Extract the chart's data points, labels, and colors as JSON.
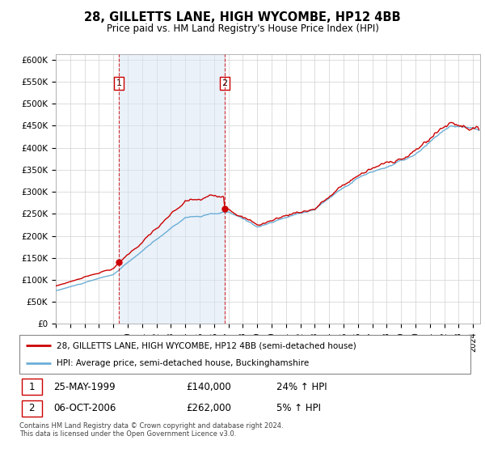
{
  "title": "28, GILLETTS LANE, HIGH WYCOMBE, HP12 4BB",
  "subtitle": "Price paid vs. HM Land Registry's House Price Index (HPI)",
  "ylabel_ticks": [
    "£0",
    "£50K",
    "£100K",
    "£150K",
    "£200K",
    "£250K",
    "£300K",
    "£350K",
    "£400K",
    "£450K",
    "£500K",
    "£550K",
    "£600K"
  ],
  "ytick_values": [
    0,
    50000,
    100000,
    150000,
    200000,
    250000,
    300000,
    350000,
    400000,
    450000,
    500000,
    550000,
    600000
  ],
  "hpi_fill_color": "#d6e4f5",
  "hpi_line_color": "#6baed6",
  "price_line_color": "#cc0000",
  "purchase1_date_x": 1999.38,
  "purchase1_price": 140000,
  "purchase2_date_x": 2006.75,
  "purchase2_price": 262000,
  "purchase1_label": "1",
  "purchase2_label": "2",
  "legend_line1": "28, GILLETTS LANE, HIGH WYCOMBE, HP12 4BB (semi-detached house)",
  "legend_line2": "HPI: Average price, semi-detached house, Buckinghamshire",
  "table_row1_num": "1",
  "table_row1_date": "25-MAY-1999",
  "table_row1_price": "£140,000",
  "table_row1_hpi": "24% ↑ HPI",
  "table_row2_num": "2",
  "table_row2_date": "06-OCT-2006",
  "table_row2_price": "£262,000",
  "table_row2_hpi": "5% ↑ HPI",
  "footer": "Contains HM Land Registry data © Crown copyright and database right 2024.\nThis data is licensed under the Open Government Licence v3.0.",
  "xmin": 1995.0,
  "xmax": 2024.5,
  "ymin": 0,
  "ymax": 600000
}
